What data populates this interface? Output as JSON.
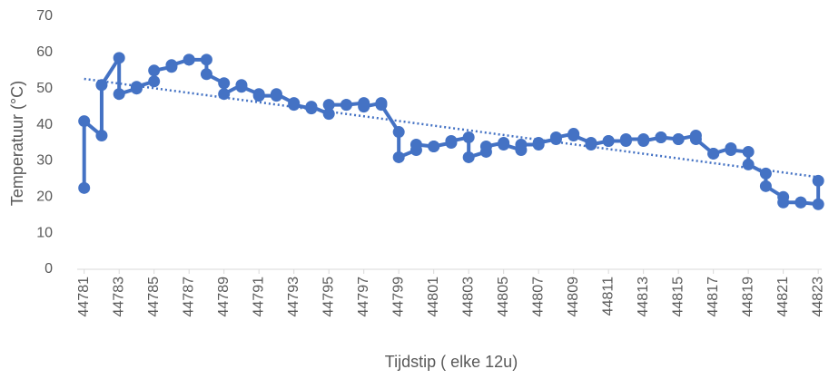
{
  "chart_data": {
    "type": "line",
    "x_label": "Tijdstip ( elke 12u)",
    "y_label": "Temperatuur (°C)",
    "xlim": [
      44780.6,
      44823.2
    ],
    "xticks": [
      44781,
      44783,
      44785,
      44787,
      44789,
      44791,
      44793,
      44795,
      44797,
      44799,
      44801,
      44803,
      44805,
      44807,
      44809,
      44811,
      44813,
      44815,
      44817,
      44819,
      44821,
      44823
    ],
    "ylim": [
      0,
      70
    ],
    "yticks": [
      0,
      10,
      20,
      30,
      40,
      50,
      60,
      70
    ],
    "grid": false,
    "series": [
      {
        "color": "#4472c4",
        "x": [
          44781,
          44781,
          44782,
          44782,
          44783,
          44783,
          44784,
          44784,
          44785,
          44785,
          44786,
          44786,
          44787,
          44787,
          44788,
          44788,
          44789,
          44789,
          44790,
          44790,
          44791,
          44791,
          44792,
          44792,
          44793,
          44793,
          44794,
          44794,
          44795,
          44795,
          44796,
          44796,
          44797,
          44797,
          44798,
          44798,
          44799,
          44799,
          44800,
          44800,
          44801,
          44801,
          44802,
          44802,
          44803,
          44803,
          44804,
          44804,
          44805,
          44805,
          44806,
          44806,
          44807,
          44807,
          44808,
          44808,
          44809,
          44809,
          44810,
          44810,
          44811,
          44811,
          44812,
          44812,
          44813,
          44813,
          44814,
          44814,
          44815,
          44815,
          44816,
          44816,
          44817,
          44817,
          44818,
          44818,
          44819,
          44819,
          44820,
          44820,
          44821,
          44821,
          44822,
          44822,
          44823,
          44823
        ],
        "values": [
          22.5,
          41,
          37,
          51,
          58.5,
          48.5,
          50,
          50.5,
          52,
          55,
          56,
          56.5,
          58,
          58,
          58,
          54,
          51.5,
          48.5,
          51,
          50.5,
          48.5,
          48,
          48,
          48.5,
          46,
          45.5,
          44.5,
          45,
          43,
          45.5,
          45.5,
          45.5,
          46,
          45,
          46,
          45.5,
          38,
          31,
          33,
          34.5,
          34,
          34,
          35,
          35.5,
          36.5,
          31,
          32.5,
          34,
          35,
          34.5,
          33,
          34.5,
          34.5,
          35,
          36,
          36.5,
          37.5,
          37,
          35,
          34.5,
          35.5,
          35.5,
          35.5,
          36,
          36,
          35.5,
          36.5,
          36.5,
          36,
          36,
          37,
          36,
          32,
          32,
          33.5,
          33,
          32.5,
          29,
          26.5,
          23,
          20,
          18.5,
          18.5,
          18.5,
          18,
          24.5
        ]
      }
    ],
    "trendline": {
      "color": "#4472c4",
      "x": [
        44781,
        44823
      ],
      "values": [
        52.7,
        25.5
      ]
    }
  }
}
